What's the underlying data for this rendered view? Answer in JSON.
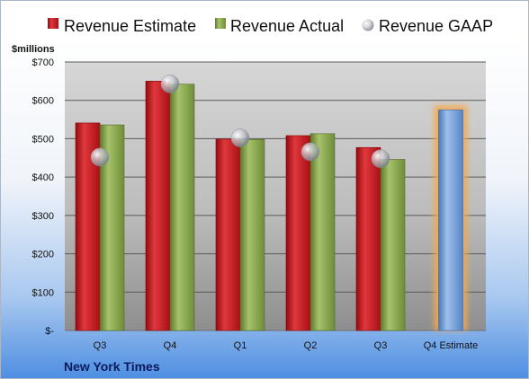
{
  "chart_data": {
    "type": "bar",
    "title": "",
    "company": "New York Times",
    "y_unit_label": "$millions",
    "categories": [
      "Q3",
      "Q4",
      "Q1",
      "Q2",
      "Q3",
      "Q4 Estimate"
    ],
    "series": [
      {
        "name": "Revenue Estimate",
        "values": [
          541,
          650,
          499,
          508,
          477,
          null
        ],
        "color": "#c0141c"
      },
      {
        "name": "Revenue Actual",
        "values": [
          536,
          642,
          498,
          513,
          446,
          null
        ],
        "color": "#86a34a"
      },
      {
        "name": "Revenue GAAP",
        "marker": "circle",
        "values": [
          452,
          643,
          502,
          466,
          448,
          null
        ],
        "color": "#b9bcc4"
      }
    ],
    "estimate_bar": {
      "category_index": 5,
      "value": 575,
      "color": "#6e9bd6",
      "glow": "#f6a84b"
    },
    "yticks": [
      0,
      100,
      200,
      300,
      400,
      500,
      600,
      700
    ],
    "ytick_labels": [
      "$-",
      "$100",
      "$200",
      "$300",
      "$400",
      "$500",
      "$600",
      "$700"
    ],
    "ylim": [
      0,
      700
    ],
    "grid": true,
    "legend_position": "top"
  }
}
